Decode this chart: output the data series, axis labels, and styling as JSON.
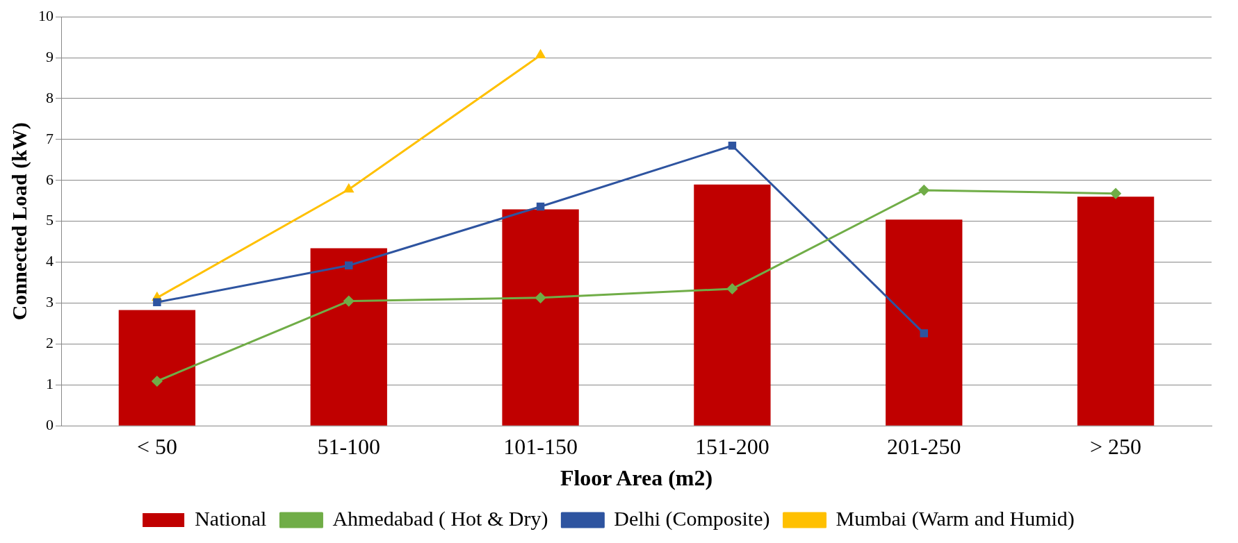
{
  "chart_data": {
    "type": "bar",
    "xlabel": "Floor Area (m2)",
    "ylabel": "Connected Load (kW)",
    "categories": [
      "< 50",
      "51-100",
      "101-150",
      "151-200",
      "201-250",
      "> 250"
    ],
    "series": [
      {
        "name": "National",
        "color": "#c00000",
        "values": [
          2.83,
          4.34,
          5.29,
          5.9,
          5.04,
          5.6
        ]
      },
      {
        "name": "Ahmedabad ( Hot & Dry)",
        "type": "line",
        "color": "#70ad47",
        "marker": "diamond",
        "values": [
          1.09,
          3.05,
          3.13,
          3.35,
          5.76,
          5.68
        ]
      },
      {
        "name": "Delhi (Composite)",
        "type": "line",
        "color": "#2e54a0",
        "marker": "square",
        "values": [
          3.02,
          3.92,
          5.36,
          6.85,
          2.26,
          null
        ]
      },
      {
        "name": "Mumbai (Warm and Humid)",
        "type": "line",
        "color": "#ffc000",
        "marker": "triangle",
        "values": [
          3.13,
          5.78,
          9.06,
          null,
          null,
          null
        ]
      }
    ],
    "ylim": [
      0,
      10
    ],
    "yticks": [
      0,
      1,
      2,
      3,
      4,
      5,
      6,
      7,
      8,
      9,
      10
    ],
    "grid": "y",
    "legend": "bottom"
  }
}
